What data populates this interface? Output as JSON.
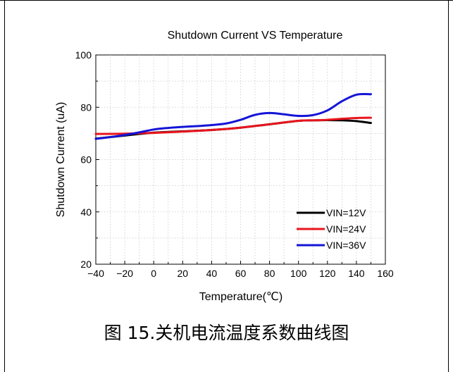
{
  "chart_data": {
    "type": "line",
    "title": "Shutdown Current VS Temperature",
    "xlabel": "Temperature(℃)",
    "ylabel": "Shutdown Current (uA)",
    "xlim": [
      -40,
      160
    ],
    "ylim": [
      20,
      100
    ],
    "xticks": [
      "−40",
      "−20",
      "0",
      "20",
      "40",
      "60",
      "80",
      "100",
      "120",
      "140",
      "160"
    ],
    "xtick_values": [
      -40,
      -20,
      0,
      20,
      40,
      60,
      80,
      100,
      120,
      140,
      160
    ],
    "yticks": [
      "20",
      "40",
      "60",
      "80",
      "100"
    ],
    "ytick_values": [
      20,
      40,
      60,
      80,
      100
    ],
    "grid": true,
    "legend_position": "bottom-right",
    "series": [
      {
        "name": "VIN=12V",
        "color": "#000000",
        "x": [
          -40,
          -20,
          0,
          20,
          40,
          60,
          80,
          100,
          110,
          120,
          130,
          140,
          150
        ],
        "y": [
          68,
          69.2,
          70.3,
          70.8,
          71.3,
          72.2,
          73.5,
          74.8,
          75.0,
          75.1,
          75.0,
          74.7,
          74.0
        ]
      },
      {
        "name": "VIN=24V",
        "color": "#e8141c",
        "x": [
          -40,
          -20,
          0,
          20,
          40,
          60,
          80,
          100,
          110,
          120,
          130,
          140,
          150
        ],
        "y": [
          69.8,
          69.9,
          70.2,
          70.7,
          71.3,
          72.2,
          73.5,
          74.8,
          75.0,
          75.2,
          75.6,
          75.9,
          76.0
        ]
      },
      {
        "name": "VIN=36V",
        "color": "#1414d8",
        "x": [
          -40,
          -30,
          -20,
          -10,
          0,
          10,
          20,
          30,
          40,
          50,
          60,
          70,
          80,
          90,
          100,
          110,
          120,
          130,
          140,
          150
        ],
        "y": [
          67.9,
          68.6,
          69.4,
          70.4,
          71.5,
          72.1,
          72.5,
          72.8,
          73.2,
          73.8,
          75.2,
          77.1,
          77.8,
          77.3,
          76.7,
          77.0,
          78.8,
          82.3,
          84.8,
          85.0
        ]
      }
    ]
  },
  "caption": "图 15.关机电流温度系数曲线图"
}
